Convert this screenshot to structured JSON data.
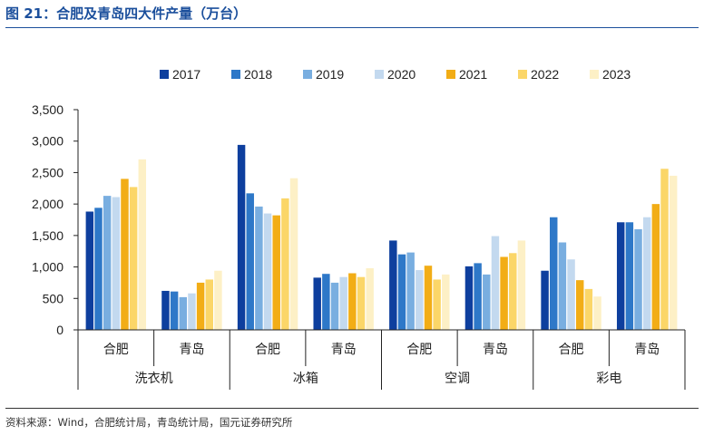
{
  "figure": {
    "title": "图 21：合肥及青岛四大件产量（万台）",
    "source": "资料来源：Wind，合肥统计局，青岛统计局，国元证券研究所"
  },
  "chart_data": {
    "type": "bar",
    "ylim": [
      0,
      3500
    ],
    "yticks": [
      0,
      500,
      1000,
      1500,
      2000,
      2500,
      3000,
      3500
    ],
    "ytick_labels": [
      "0",
      "500",
      "1,000",
      "1,500",
      "2,000",
      "2,500",
      "3,000",
      "3,500"
    ],
    "legend_position": "top",
    "grid": false,
    "groups": [
      {
        "name": "洗衣机",
        "cities": [
          "合肥",
          "青岛"
        ]
      },
      {
        "name": "冰箱",
        "cities": [
          "合肥",
          "青岛"
        ]
      },
      {
        "name": "空调",
        "cities": [
          "合肥",
          "青岛"
        ]
      },
      {
        "name": "彩电",
        "cities": [
          "合肥",
          "青岛"
        ]
      }
    ],
    "categories": [
      "洗衣机-合肥",
      "洗衣机-青岛",
      "冰箱-合肥",
      "冰箱-青岛",
      "空调-合肥",
      "空调-青岛",
      "彩电-合肥",
      "彩电-青岛"
    ],
    "series": [
      {
        "name": "2017",
        "color": "#0e3f9e",
        "values": [
          1880,
          620,
          2940,
          830,
          1420,
          1010,
          940,
          1710
        ]
      },
      {
        "name": "2018",
        "color": "#2e78c8",
        "values": [
          1940,
          610,
          2170,
          890,
          1200,
          1060,
          1790,
          1710
        ]
      },
      {
        "name": "2019",
        "color": "#79aee0",
        "values": [
          2130,
          520,
          1960,
          750,
          1230,
          880,
          1390,
          1600
        ]
      },
      {
        "name": "2020",
        "color": "#c3d9ef",
        "values": [
          2110,
          580,
          1850,
          840,
          950,
          1490,
          1120,
          1790
        ]
      },
      {
        "name": "2021",
        "color": "#f2ad16",
        "values": [
          2400,
          750,
          1820,
          900,
          1020,
          1160,
          790,
          2000
        ]
      },
      {
        "name": "2022",
        "color": "#fbd668",
        "values": [
          2270,
          800,
          2090,
          840,
          800,
          1220,
          650,
          2560
        ]
      },
      {
        "name": "2023",
        "color": "#fdf0c6",
        "values": [
          2710,
          940,
          2410,
          980,
          880,
          1420,
          530,
          2450
        ]
      }
    ]
  }
}
